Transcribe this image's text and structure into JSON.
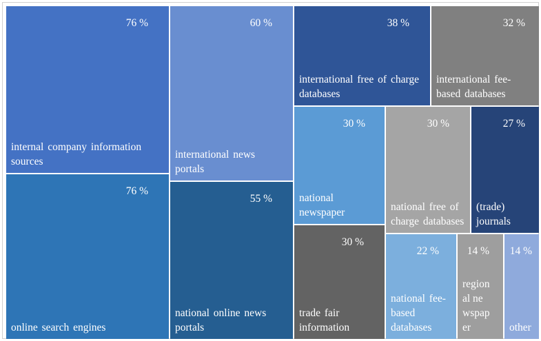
{
  "chart_data": {
    "type": "treemap",
    "unit": "%",
    "items": [
      {
        "label": "internal company information sources",
        "value": 76,
        "value_label": "76 %",
        "color": "#4472C4"
      },
      {
        "label": "online search engines",
        "value": 76,
        "value_label": "76 %",
        "color": "#2E75B6"
      },
      {
        "label": "international news portals",
        "value": 60,
        "value_label": "60 %",
        "color": "#698ED0"
      },
      {
        "label": "national online news portals",
        "value": 55,
        "value_label": "55 %",
        "color": "#255E91"
      },
      {
        "label": "international free of charge databases",
        "value": 38,
        "value_label": "38 %",
        "color": "#2F5597"
      },
      {
        "label": "international fee-based databases",
        "value": 32,
        "value_label": "32 %",
        "color": "#808080"
      },
      {
        "label": "national newspaper",
        "value": 30,
        "value_label": "30 %",
        "color": "#5B9BD5"
      },
      {
        "label": "national free of charge databases",
        "value": 30,
        "value_label": "30 %",
        "color": "#A5A5A5"
      },
      {
        "label": "(trade) journals",
        "value": 27,
        "value_label": "27 %",
        "color": "#264478"
      },
      {
        "label": "trade fair information",
        "value": 30,
        "value_label": "30 %",
        "color": "#636363"
      },
      {
        "label": "national fee-based databases",
        "value": 22,
        "value_label": "22 %",
        "color": "#7CAFDD"
      },
      {
        "label": "regional newspaper",
        "value": 14,
        "value_label": "14 %",
        "color": "#9E9E9E"
      },
      {
        "label": "other",
        "value": 14,
        "value_label": "14 %",
        "color": "#8FAADC"
      }
    ]
  }
}
